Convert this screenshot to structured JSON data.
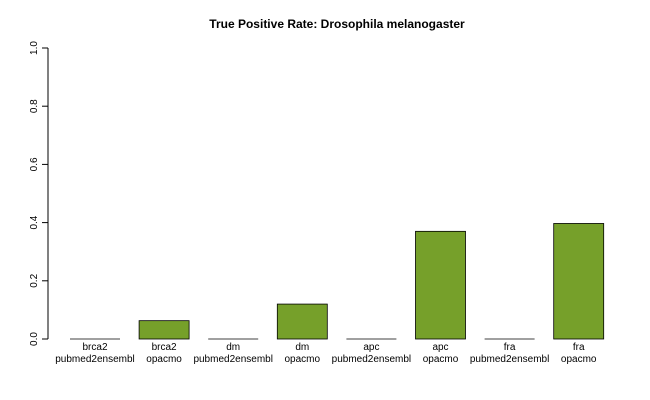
{
  "chart_data": {
    "type": "bar",
    "title": "True Positive Rate: Drosophila melanogaster",
    "xlabel": "",
    "ylabel": "",
    "ylim": [
      0,
      1.0
    ],
    "yticks": [
      "0.0",
      "0.2",
      "0.4",
      "0.6",
      "0.8",
      "1.0"
    ],
    "categories": [
      [
        "brca2",
        "pubmed2ensembl"
      ],
      [
        "brca2",
        "opacmo"
      ],
      [
        "dm",
        "pubmed2ensembl"
      ],
      [
        "dm",
        "opacmo"
      ],
      [
        "apc",
        "pubmed2ensembl"
      ],
      [
        "apc",
        "opacmo"
      ],
      [
        "fra",
        "pubmed2ensembl"
      ],
      [
        "fra",
        "opacmo"
      ]
    ],
    "values": [
      0.0,
      0.063,
      0.0,
      0.12,
      0.0,
      0.37,
      0.0,
      0.397
    ],
    "bar_color": "#76A02A",
    "grid": false,
    "legend": "none"
  }
}
